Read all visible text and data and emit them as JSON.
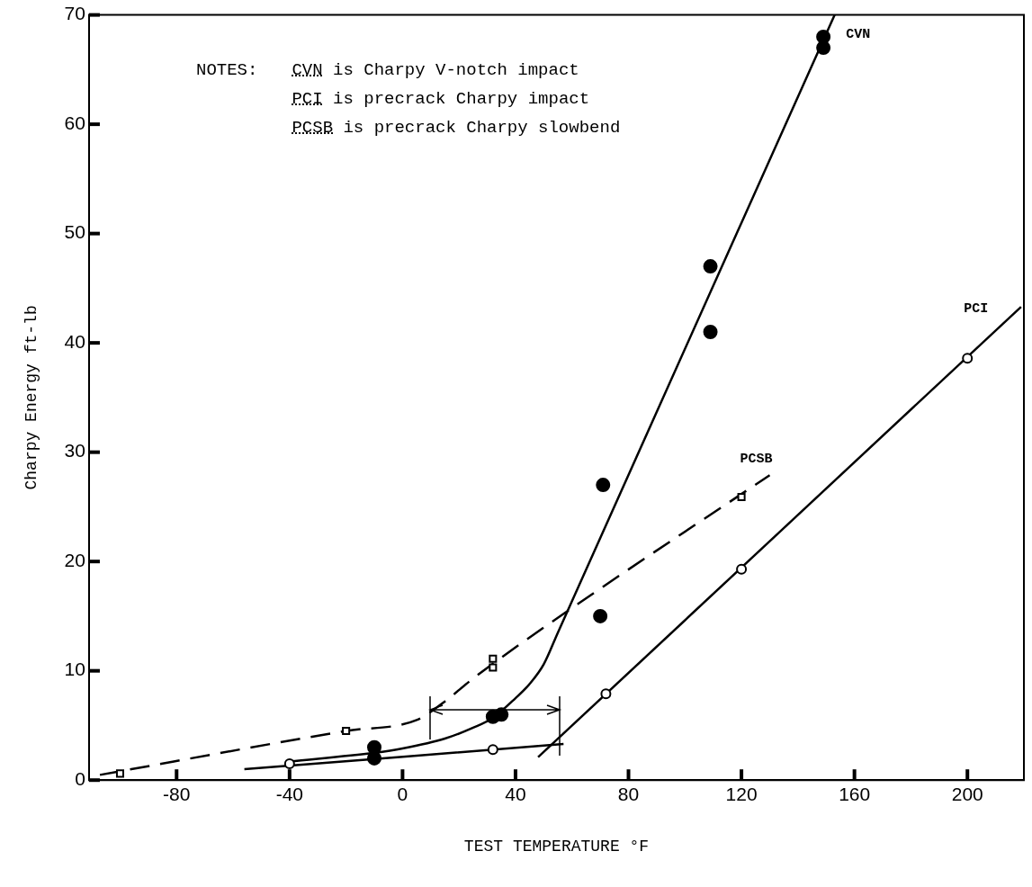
{
  "chart_data": {
    "type": "scatter",
    "xlabel": "TEST TEMPERATURE °F",
    "ylabel": "Charpy Energy ft-lb",
    "xlim": [
      -111,
      220
    ],
    "xticks": [
      -80,
      -40,
      0,
      40,
      80,
      120,
      160,
      200
    ],
    "ylim": [
      0,
      70
    ],
    "yticks": [
      0,
      10,
      20,
      30,
      40,
      50,
      60,
      70
    ],
    "grid": false,
    "legend": false,
    "annotations": [
      "NOTES:",
      "CVN is Charpy V-notch impact",
      "PCI is precrack Charpy impact",
      "PCSB is precrack Charpy slowbend"
    ],
    "series": [
      {
        "type": "scatter",
        "color": "#000000",
        "marker": "circle",
        "x": [
          -10,
          -10,
          32,
          35,
          70,
          71,
          109,
          109,
          149,
          149
        ],
        "values": [
          3,
          2,
          5.8,
          6,
          15,
          27,
          47,
          41,
          68,
          67
        ]
      },
      {
        "type": "scatter",
        "color": "#000000",
        "marker": "circle",
        "x": [
          -40,
          32,
          72,
          120,
          200
        ],
        "values": [
          1.5,
          2.8,
          7.9,
          19.3,
          38.6
        ]
      },
      {
        "type": "scatter",
        "color": "#000000",
        "marker": "square",
        "x": [
          -100,
          -20,
          32,
          32,
          120
        ],
        "values": [
          0.6,
          4.5,
          11.1,
          10.3,
          25.9
        ]
      },
      {
        "type": "line",
        "name": "CVN",
        "color": "#000000",
        "marker": "none",
        "line_style": "solid",
        "x": [
          -40,
          -10,
          0,
          15,
          25,
          32,
          40,
          45,
          50,
          55,
          153
        ],
        "values": [
          1.7,
          2.5,
          2.9,
          3.8,
          4.8,
          5.7,
          7.5,
          8.8,
          10.6,
          13.5,
          70
        ]
      },
      {
        "type": "line",
        "name": "PCI",
        "color": "#000000",
        "marker": "none",
        "line_style": "solid",
        "x": [
          48,
          219
        ],
        "values": [
          2.1,
          43.3
        ]
      },
      {
        "type": "line",
        "color": "#000000",
        "marker": "none",
        "line_style": "solid",
        "x": [
          -56,
          57
        ],
        "values": [
          1.0,
          3.3
        ]
      },
      {
        "type": "line",
        "name": "PCSB",
        "color": "#000000",
        "marker": "none",
        "line_style": "dashed",
        "x": [
          -111,
          -20,
          5,
          15,
          25,
          62,
          130
        ],
        "values": [
          0.3,
          4.5,
          5.5,
          7.2,
          9.3,
          16.1,
          27.9
        ]
      }
    ]
  }
}
